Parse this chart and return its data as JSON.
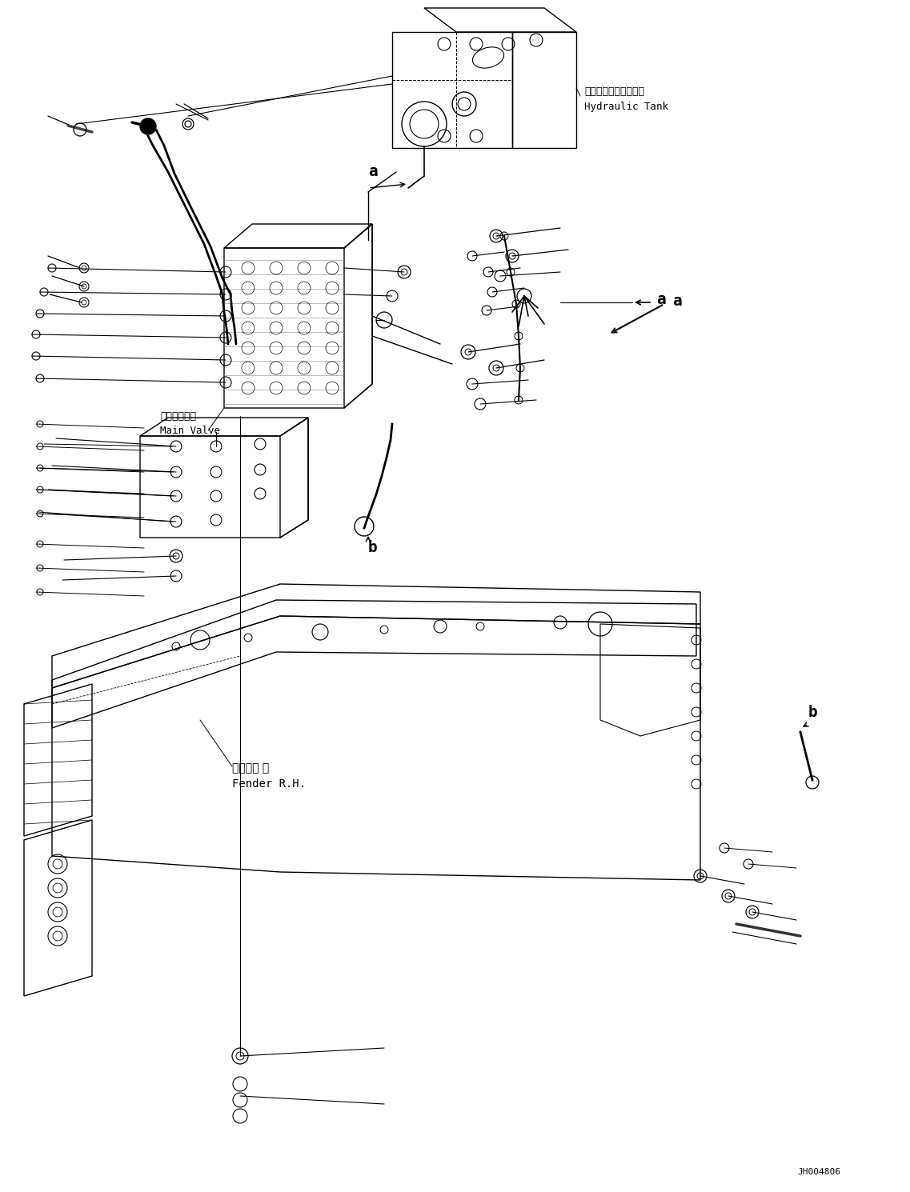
{
  "background_color": "#ffffff",
  "page_width": 11.37,
  "page_height": 14.9,
  "dpi": 100,
  "lc": "#000000",
  "labels": {
    "hydraulic_tank_jp": "ハイドロリックタンク",
    "hydraulic_tank_en": "Hydraulic Tank",
    "main_valve_jp": "メインバルブ",
    "main_valve_en": "Main Valve",
    "fender_jp": "フェンダ 右",
    "fender_en": "Fender R.H.",
    "label_a": "a",
    "label_b": "b",
    "drawing_number": "JH004806"
  }
}
